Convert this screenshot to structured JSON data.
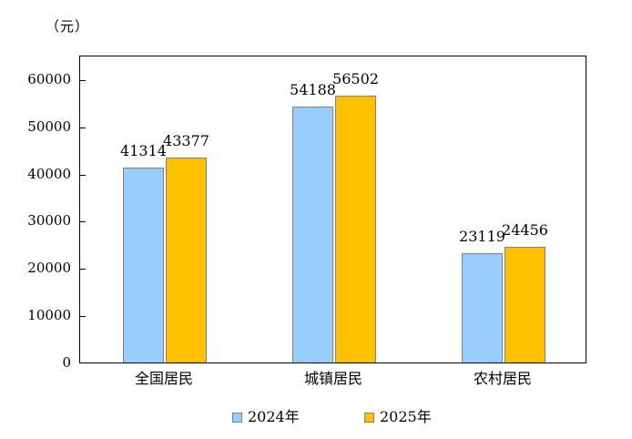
{
  "chart_data": {
    "type": "bar",
    "title": "",
    "unit_label": "（元）",
    "categories": [
      "全国居民",
      "城镇居民",
      "农村居民"
    ],
    "series": [
      {
        "name": "2024年",
        "color": "#99CCFF",
        "values": [
          41314,
          54188,
          23119
        ]
      },
      {
        "name": "2025年",
        "color": "#FFC000",
        "values": [
          43377,
          56502,
          24456
        ]
      }
    ],
    "ylim": [
      0,
      65000
    ],
    "yticks": [
      0,
      10000,
      20000,
      30000,
      40000,
      50000,
      60000
    ],
    "grid": false,
    "legend_position": "bottom",
    "bar_border_color": "#808080",
    "axis_color": "#000000",
    "background_color": "#FFFFFF"
  },
  "layout_labels": {
    "value_labels": [
      "41314",
      "43377",
      "54188",
      "56502",
      "23119",
      "24456"
    ]
  }
}
